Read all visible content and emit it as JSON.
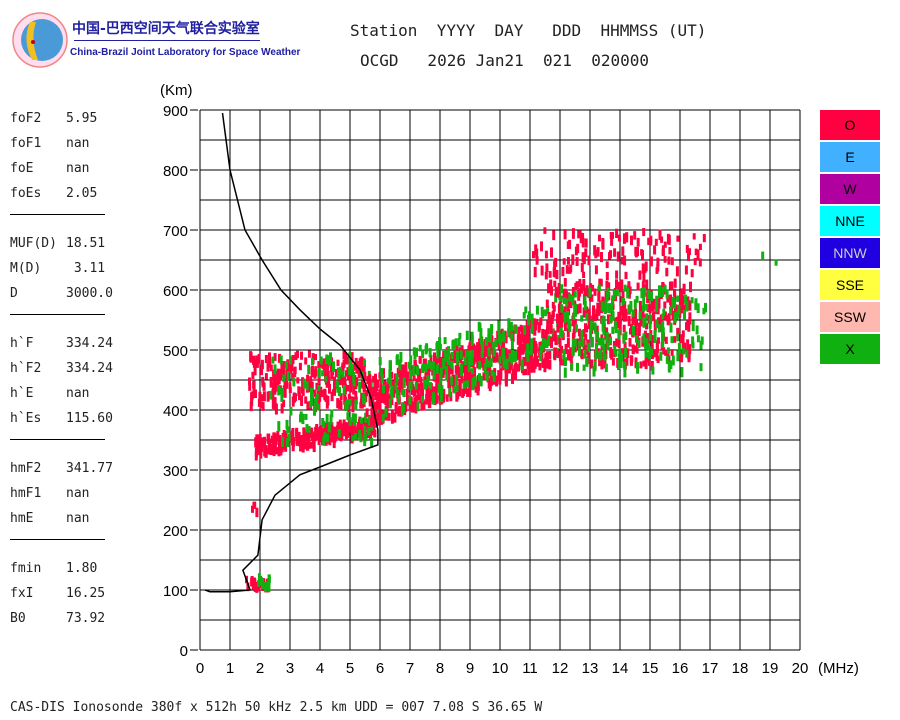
{
  "logo": {
    "cn": "中国-巴西空间天气联合实验室",
    "en": "China-Brazil Joint Laboratory for Space Weather"
  },
  "header": {
    "line1": "Station  YYYY  DAY   DDD  HHMMSS (UT)",
    "line2": "OCGD   2026 Jan21  021  020000"
  },
  "params": [
    {
      "k": "foF2",
      "v": "5.95"
    },
    {
      "k": "foF1",
      "v": "nan"
    },
    {
      "k": "foE",
      "v": "nan"
    },
    {
      "k": "foEs",
      "v": "2.05"
    },
    {
      "k": "MUF(D)",
      "v": "18.51"
    },
    {
      "k": "M(D)",
      "v": " 3.11"
    },
    {
      "k": "D",
      "v": "3000.0"
    },
    {
      "k": "h`F",
      "v": "334.24"
    },
    {
      "k": "h`F2",
      "v": "334.24"
    },
    {
      "k": "h`E",
      "v": "nan"
    },
    {
      "k": "h`Es",
      "v": "115.60"
    },
    {
      "k": "hmF2",
      "v": "341.77"
    },
    {
      "k": "hmF1",
      "v": "nan"
    },
    {
      "k": "hmE",
      "v": "nan"
    },
    {
      "k": "fmin",
      "v": "1.80"
    },
    {
      "k": "fxI",
      "v": "16.25"
    },
    {
      "k": "B0",
      "v": "73.92"
    }
  ],
  "legend": [
    {
      "label": "O",
      "color": "#ff0040"
    },
    {
      "label": "E",
      "color": "#40b0ff"
    },
    {
      "label": "W",
      "color": "#b000a0"
    },
    {
      "label": "NNE",
      "color": "#00ffff"
    },
    {
      "label": "NNW",
      "color": "#2000e0"
    },
    {
      "label": "SSE",
      "color": "#ffff40"
    },
    {
      "label": "SSW",
      "color": "#ffb8b0"
    },
    {
      "label": "X",
      "color": "#10b010"
    }
  ],
  "footer": "CAS-DIS Ionosonde 380f x 512h 50 kHz 2.5 km UDD = 007 7.08 S 36.65 W",
  "chart_data": {
    "type": "scatter",
    "ylabel": "(Km)",
    "xlabel": "(MHz)",
    "xlim": [
      0,
      20
    ],
    "ylim": [
      0,
      900
    ],
    "xticks": [
      0,
      1,
      2,
      3,
      4,
      5,
      6,
      7,
      8,
      9,
      10,
      11,
      12,
      13,
      14,
      15,
      16,
      17,
      18,
      19,
      20
    ],
    "yticks": [
      0,
      100,
      200,
      300,
      400,
      500,
      600,
      700,
      800,
      900
    ],
    "grid": true,
    "profile": [
      [
        0.75,
        895
      ],
      [
        1.0,
        800
      ],
      [
        1.5,
        700
      ],
      [
        2.07,
        650
      ],
      [
        2.7,
        600
      ],
      [
        3.33,
        567
      ],
      [
        4.0,
        535
      ],
      [
        4.67,
        508
      ],
      [
        5.33,
        467
      ],
      [
        5.7,
        420
      ],
      [
        5.93,
        367
      ],
      [
        5.93,
        342
      ],
      [
        5.0,
        325
      ],
      [
        4.0,
        305
      ],
      [
        3.33,
        292
      ],
      [
        2.5,
        258
      ],
      [
        2.07,
        217
      ],
      [
        1.93,
        158
      ],
      [
        1.43,
        133
      ],
      [
        1.67,
        100
      ],
      [
        1.0,
        97
      ],
      [
        0.33,
        97
      ],
      [
        0.17,
        100
      ]
    ],
    "echo_clusters": [
      {
        "mode": "O",
        "f": [
          1.5,
          2.3
        ],
        "h": [
          108,
          125
        ],
        "n": 25
      },
      {
        "mode": "X",
        "f": [
          1.9,
          2.3
        ],
        "h": [
          112,
          128
        ],
        "n": 10
      },
      {
        "mode": "O",
        "f": [
          1.7,
          1.9
        ],
        "h": [
          225,
          250
        ],
        "n": 4
      },
      {
        "mode": "O",
        "f": [
          1.8,
          5.8
        ],
        "h": [
          330,
          395
        ],
        "n": 260,
        "slope": 1
      },
      {
        "mode": "O",
        "f": [
          1.6,
          5.5
        ],
        "h": [
          410,
          500
        ],
        "n": 260
      },
      {
        "mode": "X",
        "f": [
          2.3,
          6.0
        ],
        "h": [
          350,
          500
        ],
        "n": 110
      },
      {
        "mode": "O",
        "f": [
          5.5,
          11.5
        ],
        "h": [
          380,
          560
        ],
        "n": 600,
        "slope": 1
      },
      {
        "mode": "X",
        "f": [
          6.0,
          12.0
        ],
        "h": [
          390,
          600
        ],
        "n": 220,
        "slope": 1
      },
      {
        "mode": "O",
        "f": [
          11.5,
          16.3
        ],
        "h": [
          480,
          620
        ],
        "n": 420
      },
      {
        "mode": "X",
        "f": [
          12.0,
          16.8
        ],
        "h": [
          470,
          610
        ],
        "n": 200
      },
      {
        "mode": "O",
        "f": [
          11.0,
          16.8
        ],
        "h": [
          630,
          705
        ],
        "n": 120
      },
      {
        "mode": "X",
        "f": [
          18.5,
          19.2
        ],
        "h": [
          650,
          665
        ],
        "n": 2
      }
    ]
  }
}
